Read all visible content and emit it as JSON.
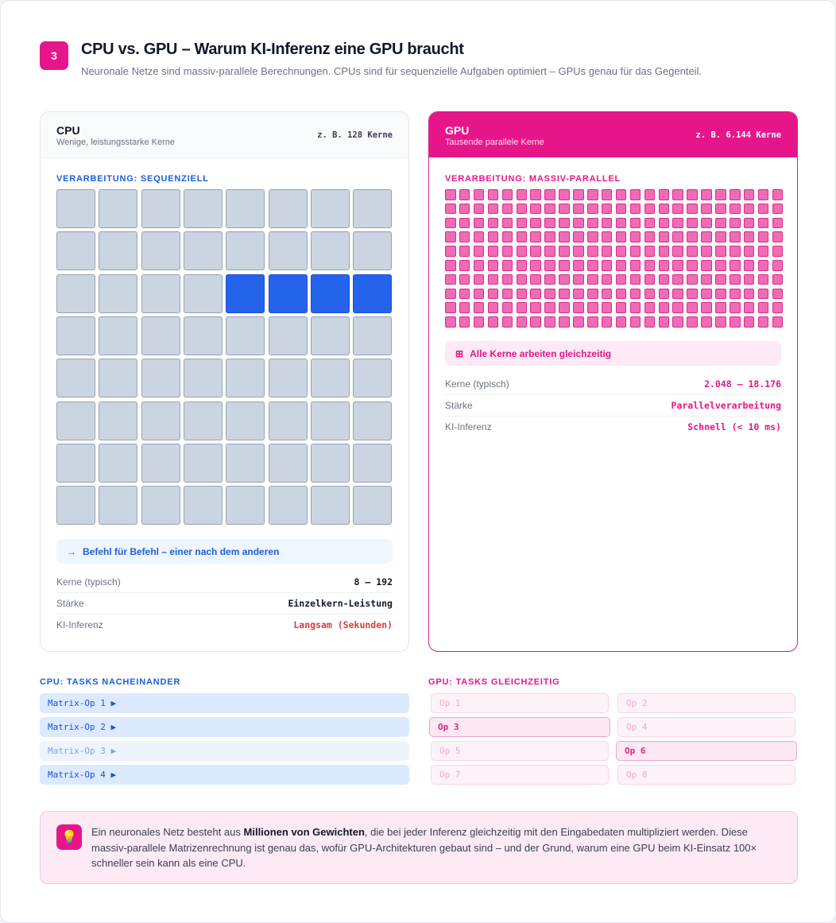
{
  "header": {
    "badge": "3",
    "title": "CPU vs. GPU – Warum KI-Inferenz eine GPU braucht",
    "subtitle": "Neuronale Netze sind massiv-parallele Berechnungen. CPUs sind für sequenzielle Aufgaben optimiert – GPUs genau für das Gegenteil."
  },
  "cpu": {
    "title": "CPU",
    "subtitle": "Wenige, leistungsstarke Kerne",
    "cores_example": "z. B. 128 Kerne",
    "processing_label": "VERARBEITUNG: SEQUENZIELL",
    "info_icon": "→",
    "info": "Befehl für Befehl – einer nach dem anderen",
    "specs": [
      {
        "label": "Kerne (typisch)",
        "value": "8 – 192"
      },
      {
        "label": "Stärke",
        "value": "Einzelkern-Leistung"
      },
      {
        "label": "KI-Inferenz",
        "value": "Langsam (Sekunden)"
      }
    ]
  },
  "gpu": {
    "title": "GPU",
    "subtitle": "Tausende parallele Kerne",
    "cores_example": "z. B. 6.144 Kerne",
    "processing_label": "VERARBEITUNG: MASSIV-PARALLEL",
    "info_icon": "⊞",
    "info": "Alle Kerne arbeiten gleichzeitig",
    "specs": [
      {
        "label": "Kerne (typisch)",
        "value": "2.048 – 18.176"
      },
      {
        "label": "Stärke",
        "value": "Parallelverarbeitung"
      },
      {
        "label": "KI-Inferenz",
        "value": "Schnell (< 10 ms)"
      }
    ]
  },
  "cpu_tasks": {
    "title": "CPU: TASKS NACHEINANDER",
    "items": [
      "Matrix-Op 1 ▶",
      "Matrix-Op 2 ▶",
      "Matrix-Op 3 ▶",
      "Matrix-Op 4 ▶"
    ]
  },
  "gpu_tasks": {
    "title": "GPU: TASKS GLEICHZEITIG",
    "items": [
      "Op 1",
      "Op 2",
      "Op 3",
      "Op 4",
      "Op 5",
      "Op 6",
      "Op 7",
      "Op 8"
    ]
  },
  "note": {
    "icon": "💡",
    "text_before": "Ein neuronales Netz besteht aus ",
    "bold": "Millionen von Gewichten",
    "text_after": ", die bei jeder Inferenz gleichzeitig mit den Eingabedaten multipliziert werden. Diese massiv-parallele Matrizenrechnung ist genau das, wofür GPU-Architekturen gebaut sind – und der Grund, warum eine GPU beim KI-Einsatz 100× schneller sein kann als eine CPU."
  }
}
